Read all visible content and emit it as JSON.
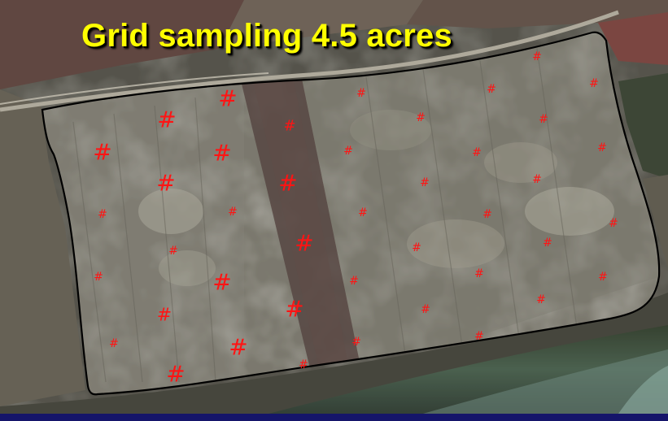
{
  "slide": {
    "title": "Grid sampling 4.5 acres"
  },
  "colors": {
    "title_text": "#ffff00",
    "sample_marker": "#ff1414",
    "field_boundary": "#000000",
    "slide_background": "#1a1a7a"
  },
  "sample_marker_symbol": "#"
}
